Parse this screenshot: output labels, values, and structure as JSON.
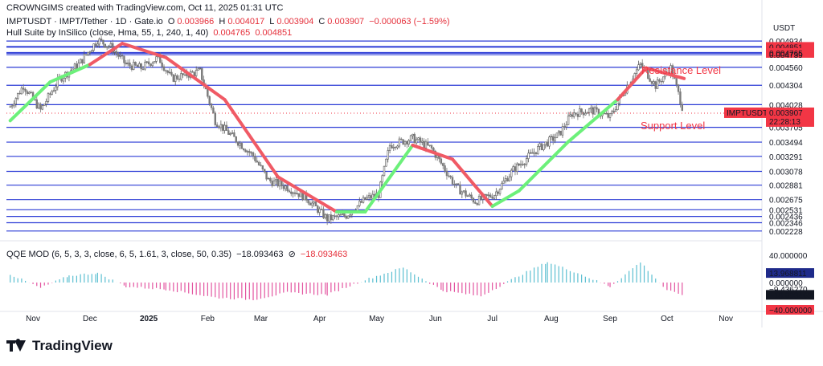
{
  "watermark": "CROWNGIMS created with TradingView.com, Oct 11, 2025 01:31 UTC",
  "header": {
    "symbol": "IMPTUSDT · IMPT/Tether · 1D · Gate.io",
    "o_label": "O",
    "o_value": "0.003966",
    "h_label": "H",
    "h_value": "0.004017",
    "l_label": "L",
    "l_value": "0.003904",
    "c_label": "C",
    "c_value": "0.003907",
    "change": "−0.000063 (−1.59%)"
  },
  "hull": {
    "label": "Hull Suite by InSilico (close, Hma, 55, 1, 240, 1, 40)",
    "v1": "0.004765",
    "v2": "0.004851",
    "color_up": "#6cf07a",
    "color_down": "#f05a65"
  },
  "qqe": {
    "label": "QQE MOD (6, 5, 3, 3, close, 6, 5, 1.61, 3, close, 50, 0.35)",
    "v1": "−18.093463",
    "symbol": "⊘",
    "v2": "−18.093463",
    "axis": [
      "40.000000",
      "13.968811",
      "0.000000",
      "−9.436270",
      "−18.093463",
      "−40.000000"
    ]
  },
  "currency": "USDT",
  "price_ticks": [
    "0.004934",
    "0.004851",
    "0.004765",
    "0.004739",
    "0.004560",
    "0.004304",
    "0.004028",
    "0.003907",
    "0.003705",
    "0.003494",
    "0.003291",
    "0.003078",
    "0.002881",
    "0.002675",
    "0.002531",
    "0.002436",
    "0.002346",
    "0.002228"
  ],
  "price_badge": {
    "symbol": "IMPTUSDT",
    "price": "0.003907",
    "countdown": "22:28:13"
  },
  "annotations": {
    "resistance": "Resistance Level",
    "support": "Support Level"
  },
  "time_ticks": [
    "Nov",
    "Dec",
    "2025",
    "Feb",
    "Mar",
    "Apr",
    "May",
    "Jun",
    "Jul",
    "Aug",
    "Sep",
    "Oct",
    "Nov"
  ],
  "colors": {
    "line": "#2b3bd6",
    "bull": "#5bbfd1",
    "bear": "#e354a0",
    "candle_up": "#5a5a5a",
    "candle_dn": "#7a7a7a",
    "badge_red": "#f23645",
    "badge_dark": "#131722"
  },
  "chart_data": {
    "type": "candlestick",
    "symbol": "IMPTUSDT",
    "ylabel": "USDT",
    "x_range": [
      "2024-10-18",
      "2025-11-20"
    ],
    "ylim": [
      0.00218,
      0.00497
    ],
    "horizontal_levels": [
      0.004934,
      0.004851,
      0.004765,
      0.004739,
      0.00456,
      0.004304,
      0.004028,
      0.003705,
      0.003494,
      0.003291,
      0.003078,
      0.002881,
      0.002675,
      0.002531,
      0.002436,
      0.002346,
      0.002228
    ],
    "last_close": 0.003907,
    "price_path": [
      [
        "2024-10-20",
        0.004
      ],
      [
        "2024-10-27",
        0.0043
      ],
      [
        "2024-11-05",
        0.00395
      ],
      [
        "2024-11-15",
        0.0044
      ],
      [
        "2024-11-25",
        0.0046
      ],
      [
        "2024-12-05",
        0.00495
      ],
      [
        "2024-12-12",
        0.00485
      ],
      [
        "2024-12-20",
        0.0046
      ],
      [
        "2024-12-28",
        0.00455
      ],
      [
        "2025-01-06",
        0.0047
      ],
      [
        "2025-01-13",
        0.0044
      ],
      [
        "2025-01-20",
        0.00445
      ],
      [
        "2025-01-28",
        0.0045
      ],
      [
        "2025-02-05",
        0.0038
      ],
      [
        "2025-02-15",
        0.00355
      ],
      [
        "2025-02-25",
        0.0033
      ],
      [
        "2025-03-05",
        0.00295
      ],
      [
        "2025-03-15",
        0.00285
      ],
      [
        "2025-03-25",
        0.0027
      ],
      [
        "2025-04-05",
        0.0024
      ],
      [
        "2025-04-15",
        0.00245
      ],
      [
        "2025-04-25",
        0.00268
      ],
      [
        "2025-05-02",
        0.00275
      ],
      [
        "2025-05-08",
        0.00345
      ],
      [
        "2025-05-20",
        0.00355
      ],
      [
        "2025-05-30",
        0.0034
      ],
      [
        "2025-06-05",
        0.00315
      ],
      [
        "2025-06-12",
        0.00285
      ],
      [
        "2025-06-22",
        0.00265
      ],
      [
        "2025-07-02",
        0.00275
      ],
      [
        "2025-07-12",
        0.0031
      ],
      [
        "2025-07-25",
        0.0034
      ],
      [
        "2025-08-05",
        0.0036
      ],
      [
        "2025-08-12",
        0.0039
      ],
      [
        "2025-08-22",
        0.00395
      ],
      [
        "2025-09-01",
        0.00385
      ],
      [
        "2025-09-10",
        0.0043
      ],
      [
        "2025-09-17",
        0.0046
      ],
      [
        "2025-09-25",
        0.0043
      ],
      [
        "2025-10-03",
        0.00455
      ],
      [
        "2025-10-10",
        0.003907
      ]
    ],
    "hull_path": [
      [
        "2024-10-20",
        0.0038,
        "up"
      ],
      [
        "2024-11-10",
        0.00435,
        "up"
      ],
      [
        "2024-12-01",
        0.0046,
        "up"
      ],
      [
        "2024-12-18",
        0.0049,
        "down"
      ],
      [
        "2025-01-10",
        0.0047,
        "down"
      ],
      [
        "2025-02-10",
        0.0041,
        "down"
      ],
      [
        "2025-03-10",
        0.003,
        "down"
      ],
      [
        "2025-04-10",
        0.0025,
        "down"
      ],
      [
        "2025-04-25",
        0.0025,
        "up"
      ],
      [
        "2025-05-20",
        0.00345,
        "up"
      ],
      [
        "2025-06-10",
        0.00325,
        "down"
      ],
      [
        "2025-07-01",
        0.00258,
        "down"
      ],
      [
        "2025-07-15",
        0.0028,
        "up"
      ],
      [
        "2025-08-10",
        0.0035,
        "up"
      ],
      [
        "2025-09-05",
        0.0041,
        "up"
      ],
      [
        "2025-09-20",
        0.00455,
        "down"
      ],
      [
        "2025-10-10",
        0.0044,
        "down"
      ]
    ],
    "qqe_ylim": [
      -40,
      40
    ],
    "qqe_path": [
      [
        "2024-10-20",
        12
      ],
      [
        "2024-11-05",
        -8
      ],
      [
        "2024-11-20",
        10
      ],
      [
        "2024-12-05",
        14
      ],
      [
        "2024-12-20",
        -6
      ],
      [
        "2025-01-10",
        -10
      ],
      [
        "2025-02-05",
        -22
      ],
      [
        "2025-02-25",
        -25
      ],
      [
        "2025-03-15",
        -15
      ],
      [
        "2025-04-05",
        -18
      ],
      [
        "2025-04-25",
        4
      ],
      [
        "2025-05-15",
        22
      ],
      [
        "2025-06-05",
        -12
      ],
      [
        "2025-06-25",
        -20
      ],
      [
        "2025-07-15",
        10
      ],
      [
        "2025-07-30",
        30
      ],
      [
        "2025-08-15",
        14
      ],
      [
        "2025-09-01",
        -6
      ],
      [
        "2025-09-17",
        30
      ],
      [
        "2025-10-01",
        -12
      ],
      [
        "2025-10-10",
        -18
      ]
    ]
  }
}
